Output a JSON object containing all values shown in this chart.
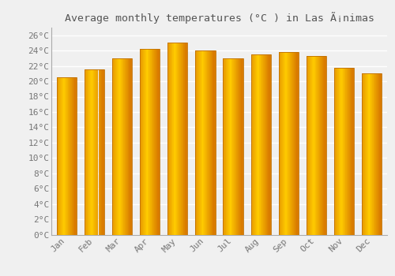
{
  "title": "Average monthly temperatures (°C ) in Las Ã¡nimas",
  "months": [
    "Jan",
    "Feb",
    "Mar",
    "Apr",
    "May",
    "Jun",
    "Jul",
    "Aug",
    "Sep",
    "Oct",
    "Nov",
    "Dec"
  ],
  "values": [
    20.5,
    21.5,
    23.0,
    24.2,
    25.0,
    24.0,
    23.0,
    23.5,
    23.8,
    23.3,
    21.8,
    21.0
  ],
  "bar_color_center": "#FFB900",
  "bar_color_edge": "#E07800",
  "ylim": [
    0,
    27
  ],
  "yticks": [
    0,
    2,
    4,
    6,
    8,
    10,
    12,
    14,
    16,
    18,
    20,
    22,
    24,
    26
  ],
  "ytick_labels": [
    "0°C",
    "2°C",
    "4°C",
    "6°C",
    "8°C",
    "10°C",
    "12°C",
    "14°C",
    "16°C",
    "18°C",
    "20°C",
    "22°C",
    "24°C",
    "26°C"
  ],
  "background_color": "#f0f0f0",
  "grid_color": "#ffffff",
  "title_fontsize": 9.5,
  "tick_fontsize": 8,
  "axis_color": "#aaaaaa",
  "font_family": "monospace"
}
